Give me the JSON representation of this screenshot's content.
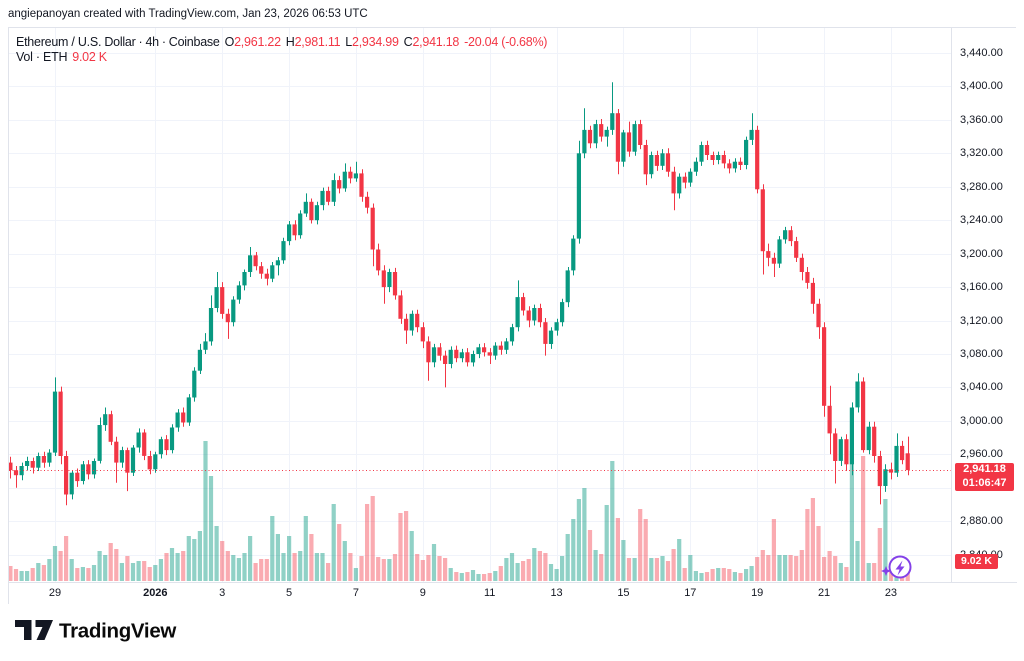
{
  "attribution": "angiepanoyan created with TradingView.com, Jan 23, 2026 06:53 UTC",
  "legend": {
    "title": "Ethereum / U.S. Dollar",
    "interval": "4h",
    "exchange": "Coinbase",
    "separator": "·",
    "ohlc": [
      {
        "label": "O",
        "value": "2,961.22"
      },
      {
        "label": "H",
        "value": "2,981.11"
      },
      {
        "label": "L",
        "value": "2,934.99"
      },
      {
        "label": "C",
        "value": "2,941.18"
      }
    ],
    "change": "-20.04 (-0.68%)",
    "vol_label": "Vol · ETH",
    "vol_value": "9.02 K"
  },
  "price_axis": {
    "ticks": [
      {
        "label": "3,440.00",
        "price": 3440
      },
      {
        "label": "3,400.00",
        "price": 3400
      },
      {
        "label": "3,360.00",
        "price": 3360
      },
      {
        "label": "3,320.00",
        "price": 3320
      },
      {
        "label": "3,280.00",
        "price": 3280
      },
      {
        "label": "3,240.00",
        "price": 3240
      },
      {
        "label": "3,200.00",
        "price": 3200
      },
      {
        "label": "3,160.00",
        "price": 3160
      },
      {
        "label": "3,120.00",
        "price": 3120
      },
      {
        "label": "3,080.00",
        "price": 3080
      },
      {
        "label": "3,040.00",
        "price": 3040
      },
      {
        "label": "3,000.00",
        "price": 3000
      },
      {
        "label": "2,960.00",
        "price": 2960
      },
      {
        "label": "2,880.00",
        "price": 2880
      },
      {
        "label": "2,840.00",
        "price": 2840
      }
    ],
    "unlabeled_grid_prices": [
      2920
    ]
  },
  "time_axis": {
    "ticks": [
      {
        "label": "29",
        "day": 0
      },
      {
        "label": "2026",
        "day": 3,
        "bold": true
      },
      {
        "label": "3",
        "day": 5
      },
      {
        "label": "5",
        "day": 7
      },
      {
        "label": "7",
        "day": 9
      },
      {
        "label": "9",
        "day": 11
      },
      {
        "label": "11",
        "day": 13
      },
      {
        "label": "13",
        "day": 15
      },
      {
        "label": "15",
        "day": 17
      },
      {
        "label": "17",
        "day": 19
      },
      {
        "label": "19",
        "day": 21
      },
      {
        "label": "21",
        "day": 23
      },
      {
        "label": "23",
        "day": 25
      }
    ]
  },
  "price_line": {
    "price": 2941.18,
    "badge_price": "2,941.18",
    "badge_countdown": "01:06:47"
  },
  "volume_badge": {
    "value_k": 9.02,
    "label": "9.02 K"
  },
  "logo": {
    "text": "TradingView"
  },
  "colors": {
    "up": "#089981",
    "down": "#f23645",
    "vol_up": "rgba(8,153,129,0.45)",
    "vol_down": "rgba(242,54,69,0.42)",
    "grid": "#f0f3fa",
    "axis_border": "#e0e3eb",
    "text": "#131722",
    "badge": "#f23645",
    "boost": "#8440e8"
  },
  "chart_data": {
    "type": "candlestick_with_volume",
    "title": "Ethereum / U.S. Dollar 4h Coinbase",
    "ylim": [
      2800,
      3470
    ],
    "volume_unit": "K",
    "candles_format": [
      "open",
      "high",
      "low",
      "close",
      "volume_k"
    ],
    "candles": [
      [
        2950,
        2957,
        2931,
        2941,
        7.5
      ],
      [
        2941,
        2946,
        2920,
        2935,
        6
      ],
      [
        2935,
        2950,
        2929,
        2946,
        5
      ],
      [
        2946,
        2957,
        2941,
        2952,
        5
      ],
      [
        2952,
        2956,
        2937,
        2944,
        6.5
      ],
      [
        2944,
        2962,
        2940,
        2958,
        9
      ],
      [
        2958,
        2963,
        2944,
        2950,
        8
      ],
      [
        2950,
        2966,
        2945,
        2962,
        11
      ],
      [
        2962,
        3052,
        2958,
        3035,
        17.5
      ],
      [
        3035,
        3041,
        2948,
        2958,
        15
      ],
      [
        2958,
        2964,
        2899,
        2912,
        22.5
      ],
      [
        2912,
        2941,
        2906,
        2938,
        11
      ],
      [
        2938,
        2943,
        2921,
        2928,
        6.5
      ],
      [
        2928,
        2952,
        2924,
        2948,
        7
      ],
      [
        2948,
        2953,
        2930,
        2936,
        6.5
      ],
      [
        2936,
        2955,
        2931,
        2952,
        8
      ],
      [
        2952,
        3004,
        2949,
        2995,
        15
      ],
      [
        2995,
        3016,
        2988,
        3008,
        13
      ],
      [
        3008,
        3012,
        2971,
        2975,
        19
      ],
      [
        2975,
        2981,
        2926,
        2950,
        16
      ],
      [
        2950,
        2969,
        2944,
        2965,
        9
      ],
      [
        2965,
        2968,
        2916,
        2938,
        12.5
      ],
      [
        2938,
        2971,
        2934,
        2968,
        9
      ],
      [
        2968,
        2991,
        2962,
        2986,
        10
      ],
      [
        2986,
        2990,
        2953,
        2958,
        10
      ],
      [
        2958,
        2964,
        2936,
        2942,
        7
      ],
      [
        2942,
        2963,
        2938,
        2960,
        8
      ],
      [
        2960,
        2981,
        2955,
        2978,
        11
      ],
      [
        2978,
        2983,
        2959,
        2965,
        14
      ],
      [
        2965,
        2996,
        2961,
        2992,
        16.5
      ],
      [
        2992,
        3014,
        2987,
        3010,
        14
      ],
      [
        3010,
        3016,
        2993,
        2998,
        15
      ],
      [
        2998,
        3032,
        2994,
        3028,
        22.5
      ],
      [
        3028,
        3064,
        3023,
        3060,
        21
      ],
      [
        3060,
        3092,
        3056,
        3085,
        25
      ],
      [
        3085,
        3105,
        3080,
        3095,
        70
      ],
      [
        3095,
        3150,
        3090,
        3135,
        52.5
      ],
      [
        3135,
        3178,
        3130,
        3160,
        27.5
      ],
      [
        3160,
        3166,
        3122,
        3128,
        20
      ],
      [
        3128,
        3134,
        3098,
        3118,
        15
      ],
      [
        3118,
        3149,
        3113,
        3145,
        13
      ],
      [
        3145,
        3167,
        3140,
        3162,
        11.5
      ],
      [
        3162,
        3181,
        3156,
        3178,
        14
      ],
      [
        3178,
        3208,
        3172,
        3198,
        22.5
      ],
      [
        3198,
        3202,
        3180,
        3185,
        9
      ],
      [
        3185,
        3190,
        3170,
        3176,
        11
      ],
      [
        3176,
        3182,
        3162,
        3170,
        11
      ],
      [
        3170,
        3190,
        3166,
        3186,
        32.5
      ],
      [
        3186,
        3196,
        3174,
        3192,
        23.5
      ],
      [
        3192,
        3219,
        3188,
        3215,
        14
      ],
      [
        3215,
        3239,
        3210,
        3235,
        22.5
      ],
      [
        3235,
        3240,
        3216,
        3222,
        14
      ],
      [
        3222,
        3252,
        3218,
        3248,
        15
      ],
      [
        3248,
        3272,
        3244,
        3262,
        32.5
      ],
      [
        3262,
        3266,
        3236,
        3240,
        23.5
      ],
      [
        3240,
        3262,
        3235,
        3258,
        14
      ],
      [
        3258,
        3279,
        3252,
        3275,
        14
      ],
      [
        3275,
        3280,
        3258,
        3262,
        9
      ],
      [
        3262,
        3296,
        3257,
        3288,
        38.5
      ],
      [
        3288,
        3293,
        3272,
        3278,
        28.5
      ],
      [
        3278,
        3308,
        3274,
        3298,
        20
      ],
      [
        3298,
        3304,
        3284,
        3290,
        14
      ],
      [
        3290,
        3310,
        3286,
        3296,
        6.5
      ],
      [
        3296,
        3301,
        3262,
        3268,
        12.5
      ],
      [
        3268,
        3274,
        3248,
        3255,
        38.5
      ],
      [
        3255,
        3260,
        3185,
        3205,
        42.5
      ],
      [
        3205,
        3212,
        3174,
        3180,
        12
      ],
      [
        3180,
        3186,
        3140,
        3160,
        11
      ],
      [
        3160,
        3182,
        3154,
        3178,
        11
      ],
      [
        3178,
        3183,
        3145,
        3150,
        13.5
      ],
      [
        3150,
        3156,
        3116,
        3122,
        34
      ],
      [
        3122,
        3128,
        3092,
        3108,
        35
      ],
      [
        3108,
        3132,
        3102,
        3128,
        25
      ],
      [
        3128,
        3133,
        3106,
        3112,
        13.5
      ],
      [
        3112,
        3118,
        3087,
        3095,
        10.5
      ],
      [
        3095,
        3101,
        3048,
        3070,
        13
      ],
      [
        3070,
        3092,
        3064,
        3088,
        18.5
      ],
      [
        3088,
        3093,
        3072,
        3078,
        12.5
      ],
      [
        3078,
        3084,
        3040,
        3068,
        11.5
      ],
      [
        3068,
        3089,
        3063,
        3085,
        6.5
      ],
      [
        3085,
        3090,
        3070,
        3075,
        4.5
      ],
      [
        3075,
        3086,
        3070,
        3082,
        4
      ],
      [
        3082,
        3087,
        3065,
        3070,
        4.5
      ],
      [
        3070,
        3084,
        3065,
        3080,
        5.5
      ],
      [
        3080,
        3092,
        3075,
        3088,
        3.5
      ],
      [
        3088,
        3093,
        3077,
        3082,
        3.5
      ],
      [
        3082,
        3087,
        3068,
        3078,
        4
      ],
      [
        3078,
        3094,
        3073,
        3090,
        5
      ],
      [
        3090,
        3095,
        3079,
        3085,
        7.5
      ],
      [
        3085,
        3099,
        3080,
        3095,
        11.5
      ],
      [
        3095,
        3116,
        3090,
        3112,
        14
      ],
      [
        3112,
        3168,
        3107,
        3148,
        9
      ],
      [
        3148,
        3153,
        3126,
        3132,
        10
      ],
      [
        3132,
        3137,
        3112,
        3120,
        11
      ],
      [
        3120,
        3139,
        3114,
        3135,
        16.5
      ],
      [
        3135,
        3140,
        3112,
        3118,
        15
      ],
      [
        3118,
        3123,
        3078,
        3092,
        14
      ],
      [
        3092,
        3112,
        3086,
        3108,
        8.5
      ],
      [
        3108,
        3122,
        3102,
        3118,
        6
      ],
      [
        3118,
        3146,
        3113,
        3142,
        12.5
      ],
      [
        3142,
        3184,
        3136,
        3180,
        23.5
      ],
      [
        3180,
        3222,
        3174,
        3218,
        31
      ],
      [
        3218,
        3335,
        3212,
        3320,
        41
      ],
      [
        3320,
        3374,
        3314,
        3348,
        46.5
      ],
      [
        3348,
        3353,
        3326,
        3332,
        25.5
      ],
      [
        3332,
        3360,
        3326,
        3355,
        15.5
      ],
      [
        3355,
        3361,
        3334,
        3340,
        13.5
      ],
      [
        3340,
        3352,
        3328,
        3348,
        38
      ],
      [
        3348,
        3405,
        3342,
        3368,
        60
      ],
      [
        3368,
        3373,
        3295,
        3310,
        31.5
      ],
      [
        3310,
        3348,
        3304,
        3345,
        20.5
      ],
      [
        3345,
        3358,
        3316,
        3322,
        11.5
      ],
      [
        3322,
        3359,
        3317,
        3355,
        11.5
      ],
      [
        3355,
        3360,
        3325,
        3330,
        36
      ],
      [
        3330,
        3336,
        3282,
        3295,
        31
      ],
      [
        3295,
        3322,
        3290,
        3318,
        11.5
      ],
      [
        3318,
        3323,
        3299,
        3305,
        11.5
      ],
      [
        3305,
        3325,
        3300,
        3320,
        12.5
      ],
      [
        3320,
        3326,
        3292,
        3298,
        10
      ],
      [
        3298,
        3304,
        3252,
        3272,
        16
      ],
      [
        3272,
        3296,
        3266,
        3292,
        21
      ],
      [
        3292,
        3297,
        3278,
        3285,
        6.5
      ],
      [
        3285,
        3302,
        3280,
        3298,
        13
      ],
      [
        3298,
        3315,
        3293,
        3310,
        5
      ],
      [
        3310,
        3334,
        3305,
        3330,
        4
      ],
      [
        3330,
        3335,
        3312,
        3318,
        4.5
      ],
      [
        3318,
        3322,
        3306,
        3312,
        6
      ],
      [
        3312,
        3322,
        3307,
        3318,
        6.5
      ],
      [
        3318,
        3323,
        3302,
        3308,
        6.5
      ],
      [
        3308,
        3313,
        3296,
        3302,
        6
      ],
      [
        3302,
        3314,
        3297,
        3310,
        4.5
      ],
      [
        3310,
        3315,
        3300,
        3306,
        4
      ],
      [
        3306,
        3340,
        3301,
        3336,
        6
      ],
      [
        3336,
        3368,
        3330,
        3348,
        7.5
      ],
      [
        3348,
        3353,
        3272,
        3277,
        12
      ],
      [
        3277,
        3283,
        3175,
        3203,
        15.5
      ],
      [
        3203,
        3212,
        3185,
        3195,
        13
      ],
      [
        3195,
        3201,
        3172,
        3188,
        31
      ],
      [
        3188,
        3221,
        3183,
        3217,
        13
      ],
      [
        3217,
        3232,
        3212,
        3228,
        13
      ],
      [
        3228,
        3233,
        3209,
        3215,
        13
      ],
      [
        3215,
        3220,
        3190,
        3195,
        12.5
      ],
      [
        3195,
        3200,
        3168,
        3178,
        15.5
      ],
      [
        3178,
        3184,
        3158,
        3165,
        36
      ],
      [
        3165,
        3171,
        3128,
        3140,
        41.5
      ],
      [
        3140,
        3146,
        3098,
        3112,
        27.5
      ],
      [
        3112,
        3118,
        3005,
        3018,
        12
      ],
      [
        3018,
        3042,
        2960,
        2985,
        15
      ],
      [
        2985,
        2991,
        2925,
        2952,
        12.5
      ],
      [
        2952,
        2981,
        2946,
        2978,
        9
      ],
      [
        2978,
        2984,
        2940,
        2948,
        7
      ],
      [
        2948,
        3022,
        2935,
        3016,
        65
      ],
      [
        3016,
        3057,
        3010,
        3047,
        20
      ],
      [
        3047,
        3052,
        2962,
        2965,
        62.5
      ],
      [
        2965,
        2999,
        2960,
        2993,
        9
      ],
      [
        2993,
        2999,
        2950,
        2958,
        9
      ],
      [
        2958,
        2964,
        2900,
        2922,
        26.5
      ],
      [
        2922,
        2948,
        2915,
        2942,
        41
      ],
      [
        2942,
        2950,
        2930,
        2938,
        7.5
      ],
      [
        2938,
        2985,
        2933,
        2970,
        9
      ],
      [
        2970,
        2976,
        2948,
        2953,
        5.5
      ],
      [
        2961.22,
        2981.11,
        2934.99,
        2941.18,
        9.02
      ]
    ]
  }
}
